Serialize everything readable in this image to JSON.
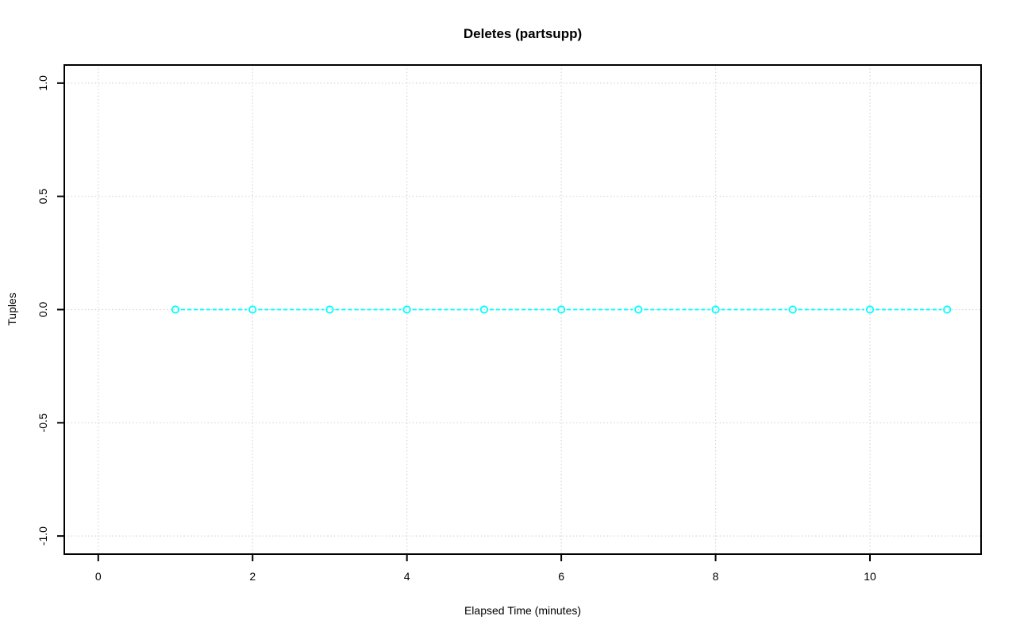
{
  "chart_data": {
    "type": "line",
    "title": "Deletes (partsupp)",
    "xlabel": "Elapsed Time (minutes)",
    "ylabel": "Tuples",
    "x": [
      1,
      2,
      3,
      4,
      5,
      6,
      7,
      8,
      9,
      10,
      11
    ],
    "y": [
      0,
      0,
      0,
      0,
      0,
      0,
      0,
      0,
      0,
      0,
      0
    ],
    "xlim": [
      -0.44,
      11.44
    ],
    "ylim": [
      -1.08,
      1.08
    ],
    "x_ticks": {
      "values": [
        0,
        2,
        4,
        6,
        8,
        10
      ],
      "labels": [
        "0",
        "2",
        "4",
        "6",
        "8",
        "10"
      ]
    },
    "y_ticks": {
      "values": [
        -1.0,
        -0.5,
        0.0,
        0.5,
        1.0
      ],
      "labels": [
        "-1.0",
        "-0.5",
        "0.0",
        "0.5",
        "1.0"
      ]
    },
    "grid": true,
    "grid_style": "dotted",
    "legend": "none",
    "marker": "open-circle",
    "line_style": "dashed",
    "series_color": "#00ffff",
    "grid_color": "#d6d6d6",
    "axis_color": "#000000",
    "background_color": "#ffffff"
  }
}
